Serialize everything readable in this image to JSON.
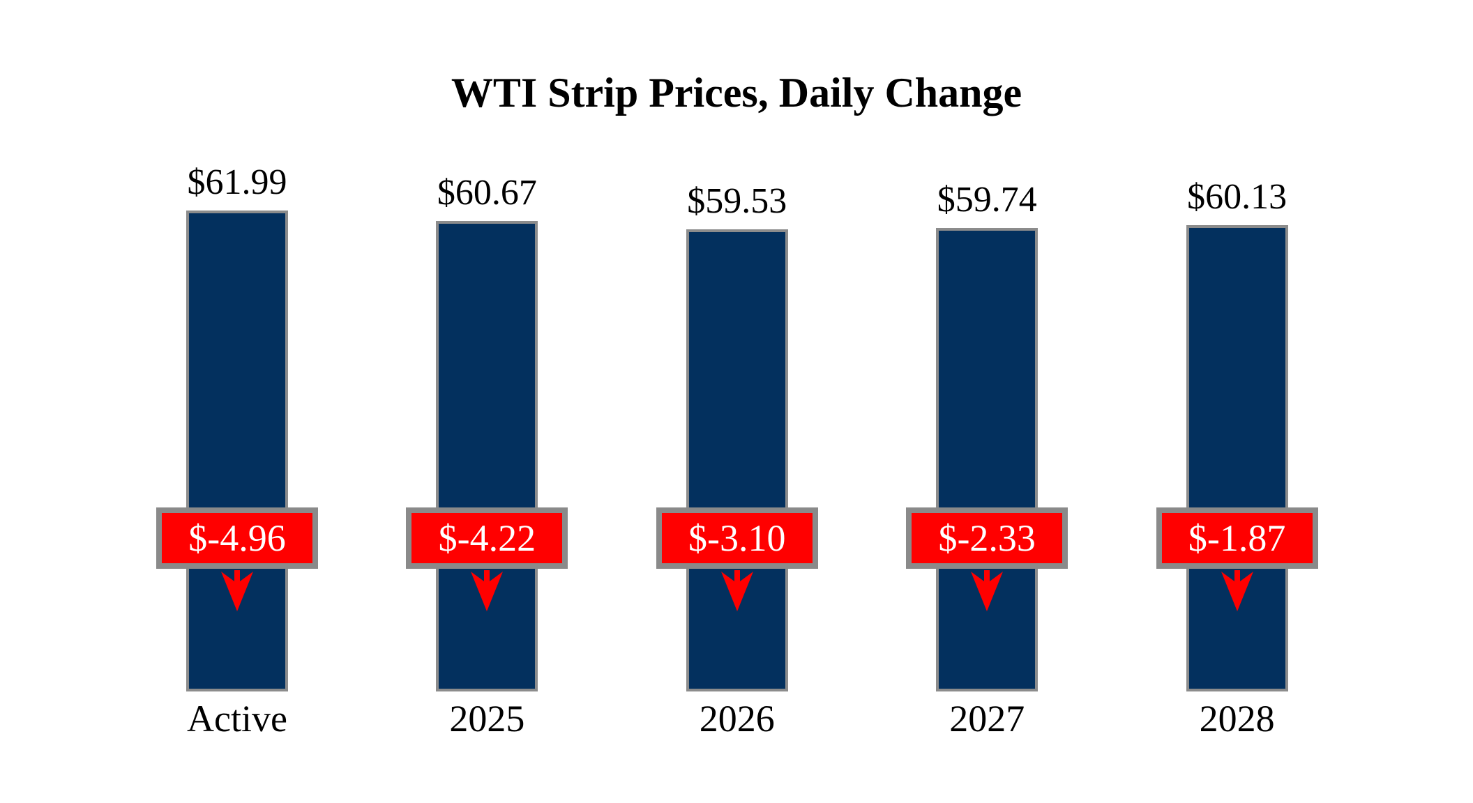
{
  "title": "WTI Strip Prices, Daily Change",
  "colors": {
    "background": "#FFFFFF",
    "bar_fill": "#03305E",
    "bar_border": "#8C8C8C",
    "change_box_fill": "#FF0000",
    "change_box_border": "#8A8A8A",
    "change_text": "#FFFFFF",
    "arrow": "#FF0000",
    "text": "#000000"
  },
  "icons": {
    "down_arrow": "↓"
  },
  "chart_data": {
    "type": "bar",
    "title": "WTI Strip Prices, Daily Change",
    "categories": [
      "Active",
      "2025",
      "2026",
      "2027",
      "2028"
    ],
    "series": [
      {
        "name": "Strip Price",
        "values": [
          61.99,
          60.67,
          59.53,
          59.74,
          60.13
        ],
        "labels": [
          "$61.99",
          "$60.67",
          "$59.53",
          "$59.74",
          "$60.13"
        ]
      },
      {
        "name": "Daily Change",
        "values": [
          -4.96,
          -4.22,
          -3.1,
          -2.33,
          -1.87
        ],
        "labels": [
          "$-4.96",
          "$-4.22",
          "$-3.10",
          "$-2.33",
          "$-1.87"
        ]
      }
    ],
    "xlabel": "",
    "ylabel": "",
    "ylim": [
      0,
      62
    ],
    "grid": false,
    "legend": false,
    "value_labels_position": "above-bars",
    "change_labels_position": "overlay-band"
  }
}
